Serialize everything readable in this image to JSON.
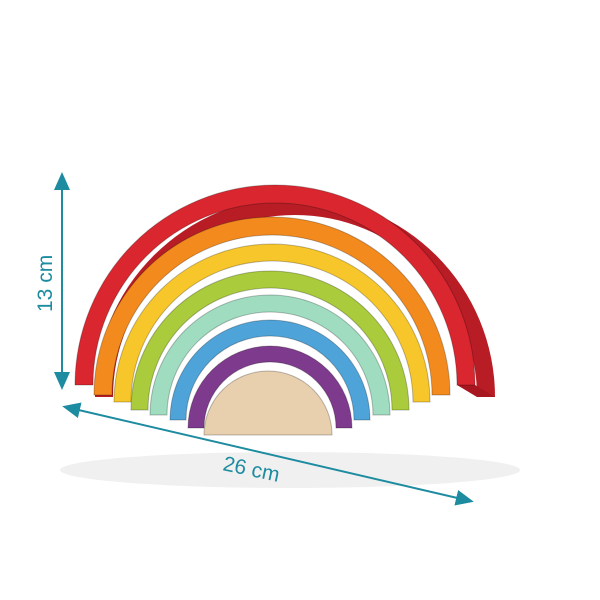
{
  "product": {
    "name_icon": "wooden-rainbow-stacker",
    "pieces": [
      {
        "color": "#d9262f",
        "name": "red"
      },
      {
        "color": "#f28a1e",
        "name": "orange"
      },
      {
        "color": "#f6c62a",
        "name": "yellow"
      },
      {
        "color": "#a9cb3c",
        "name": "lime"
      },
      {
        "color": "#9fdcc0",
        "name": "mint"
      },
      {
        "color": "#4ea3d8",
        "name": "blue"
      },
      {
        "color": "#7e3a8c",
        "name": "purple"
      },
      {
        "color": "#e8cfae",
        "name": "wood"
      }
    ]
  },
  "dimensions": {
    "height_label": "13 cm",
    "width_label": "26 cm",
    "color": "#1d8ba0"
  }
}
